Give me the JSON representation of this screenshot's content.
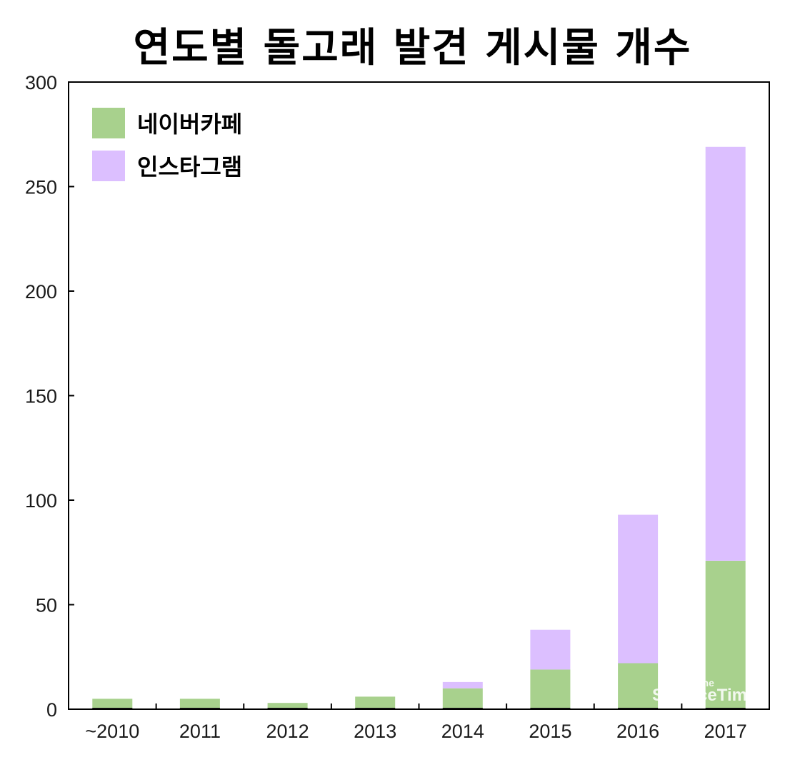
{
  "chart_data": {
    "type": "bar",
    "stacked": true,
    "title": "연도별 돌고래 발견 게시물 개수",
    "categories": [
      "~2010",
      "2011",
      "2012",
      "2013",
      "2014",
      "2015",
      "2016",
      "2017"
    ],
    "series": [
      {
        "name": "네이버카페",
        "color": "#a8d18d",
        "values": [
          5,
          5,
          3,
          6,
          10,
          19,
          22,
          71
        ]
      },
      {
        "name": "인스타그램",
        "color": "#dcbfff",
        "values": [
          0,
          0,
          0,
          0,
          3,
          19,
          71,
          198
        ]
      }
    ],
    "ylim": [
      0,
      300
    ],
    "yticks": [
      0,
      50,
      100,
      150,
      200,
      250,
      300
    ],
    "xlabel": "",
    "ylabel": "",
    "legend_position": "top-left",
    "grid": false
  },
  "watermark": {
    "small": "The",
    "main": "ScienceTimes"
  }
}
